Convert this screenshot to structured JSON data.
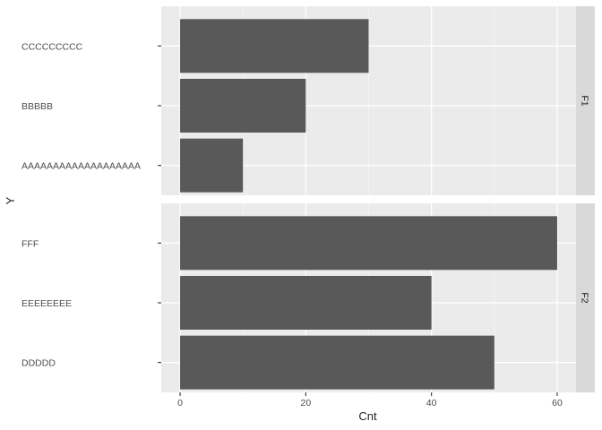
{
  "chart_data": {
    "type": "bar",
    "orientation": "horizontal",
    "xlabel": "Cnt",
    "ylabel": "Y",
    "xlim": [
      -3,
      63
    ],
    "x_ticks": [
      0,
      20,
      40,
      60
    ],
    "grid": true,
    "facet_position": "right",
    "bar_color": "#595959",
    "panel_color": "#ebebeb",
    "strip_color": "#d9d9d9",
    "facets": [
      {
        "label": "F1",
        "categories": [
          "AAAAAAAAAAAAAAAAAAA",
          "BBBBB",
          "CCCCCCCCC"
        ],
        "values": [
          10,
          20,
          30
        ]
      },
      {
        "label": "F2",
        "categories": [
          "DDDDD",
          "EEEEEEEE",
          "FFF"
        ],
        "values": [
          50,
          40,
          60
        ]
      }
    ]
  }
}
